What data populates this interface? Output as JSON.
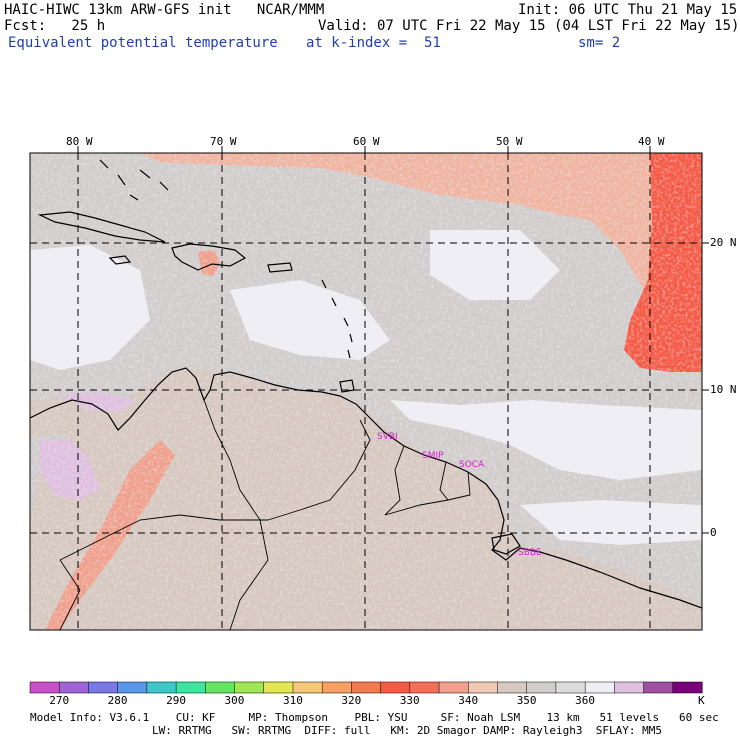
{
  "header": {
    "model": "HAIC-HIWC 13km ARW-GFS init   NCAR/MMM",
    "init": "Init: 06 UTC Thu 21 May 15",
    "fcst": "Fcst:   25 h",
    "valid": "Valid: 07 UTC Fri 22 May 15 (04 LST Fri 22 May 15)",
    "field": "Equivalent potential temperature",
    "level": "at k-index =  51",
    "smooth": "sm= 2"
  },
  "axes": {
    "lon_labels": [
      "80 W",
      "70 W",
      "60 W",
      "50 W",
      "40 W"
    ],
    "lat_labels": [
      "20 N",
      "10 N",
      "0"
    ]
  },
  "cities": [
    "SVBI",
    "SMJP",
    "SOCA",
    "SBBE"
  ],
  "colorbar": {
    "colors": [
      "#c850c8",
      "#a064d2",
      "#7878e6",
      "#5a96e6",
      "#3cc8c8",
      "#3ce6a0",
      "#64e664",
      "#a0e650",
      "#e6e650",
      "#f5c878",
      "#f5a064",
      "#f57850",
      "#f55a46",
      "#f56e5a",
      "#f0a08c",
      "#f0c8b4",
      "#d7c8c0",
      "#d2cdcd",
      "#dcdcdc",
      "#eeeef4",
      "#e0c0e0",
      "#a050a0",
      "#780078"
    ],
    "tick_labels": [
      "270",
      "280",
      "290",
      "300",
      "310",
      "320",
      "330",
      "340",
      "350",
      "360"
    ],
    "unit": "K"
  },
  "footer": {
    "line1": "Model Info: V3.6.1    CU: KF     MP: Thompson    PBL: YSU     SF: Noah LSM    13 km   51 levels   60 sec",
    "line2": "LW: RRTMG   SW: RRTMG  DIFF: full   KM: 2D Smagor DAMP: Rayleigh3  SFLAY: MM5"
  },
  "theme": {
    "ocean_gray": "#d2cdcd",
    "land_tan": "#d7c8c0",
    "warm_salmon": "#f0b4a0",
    "hot_red": "#f55a46",
    "cool_white": "#eeeef4",
    "lavender": "#e0c0e0",
    "title_blue": "#1f3fb0"
  }
}
